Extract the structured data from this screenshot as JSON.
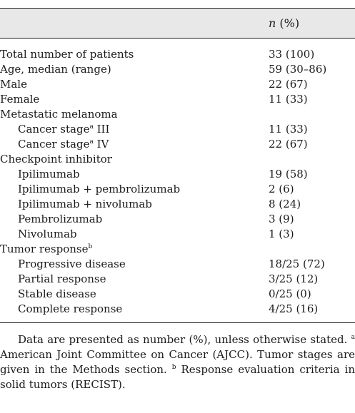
{
  "table": {
    "column_header": {
      "n": "n",
      "pct": " (%)"
    },
    "rows": [
      {
        "label": "Total number of patients",
        "value": "33 (100)",
        "indent": false
      },
      {
        "label": "Age, median (range)",
        "value": "59 (30–86)",
        "indent": false
      },
      {
        "label": "Male",
        "value": "22 (67)",
        "indent": false
      },
      {
        "label": "Female",
        "value": "11 (33)",
        "indent": false
      },
      {
        "label": "Metastatic melanoma",
        "value": "",
        "indent": false
      },
      {
        "label": "Cancer stage",
        "sup": "a",
        "label_tail": " III",
        "value": "11 (33)",
        "indent": true
      },
      {
        "label": "Cancer stage",
        "sup": "a",
        "label_tail": " IV",
        "value": "22 (67)",
        "indent": true
      },
      {
        "label": "Checkpoint inhibitor",
        "value": "",
        "indent": false
      },
      {
        "label": "Ipilimumab",
        "value": "19 (58)",
        "indent": true
      },
      {
        "label": "Ipilimumab + pembrolizumab",
        "value": "2 (6)",
        "indent": true
      },
      {
        "label": "Ipilimumab + nivolumab",
        "value": "8 (24)",
        "indent": true
      },
      {
        "label": "Pembrolizumab",
        "value": "3 (9)",
        "indent": true
      },
      {
        "label": "Nivolumab",
        "value": "1 (3)",
        "indent": true
      },
      {
        "label": "Tumor response",
        "sup": "b",
        "label_tail": "",
        "value": "",
        "indent": false
      },
      {
        "label": "Progressive disease",
        "value": "18/25 (72)",
        "indent": true
      },
      {
        "label": "Partial response",
        "value": "3/25 (12)",
        "indent": true
      },
      {
        "label": "Stable disease",
        "value": "0/25 (0)",
        "indent": true
      },
      {
        "label": "Complete response",
        "value": "4/25 (16)",
        "indent": true
      }
    ]
  },
  "footnote": {
    "line1": "Data are presented as number (%), unless otherwise stated.",
    "a_marker": "a",
    "a_text": " American Joint Committee on Cancer (AJCC). Tumor stages are given in the Methods section. ",
    "b_marker": "b",
    "b_text": " Response evaluation criteria in solid tumors (RECIST)."
  }
}
